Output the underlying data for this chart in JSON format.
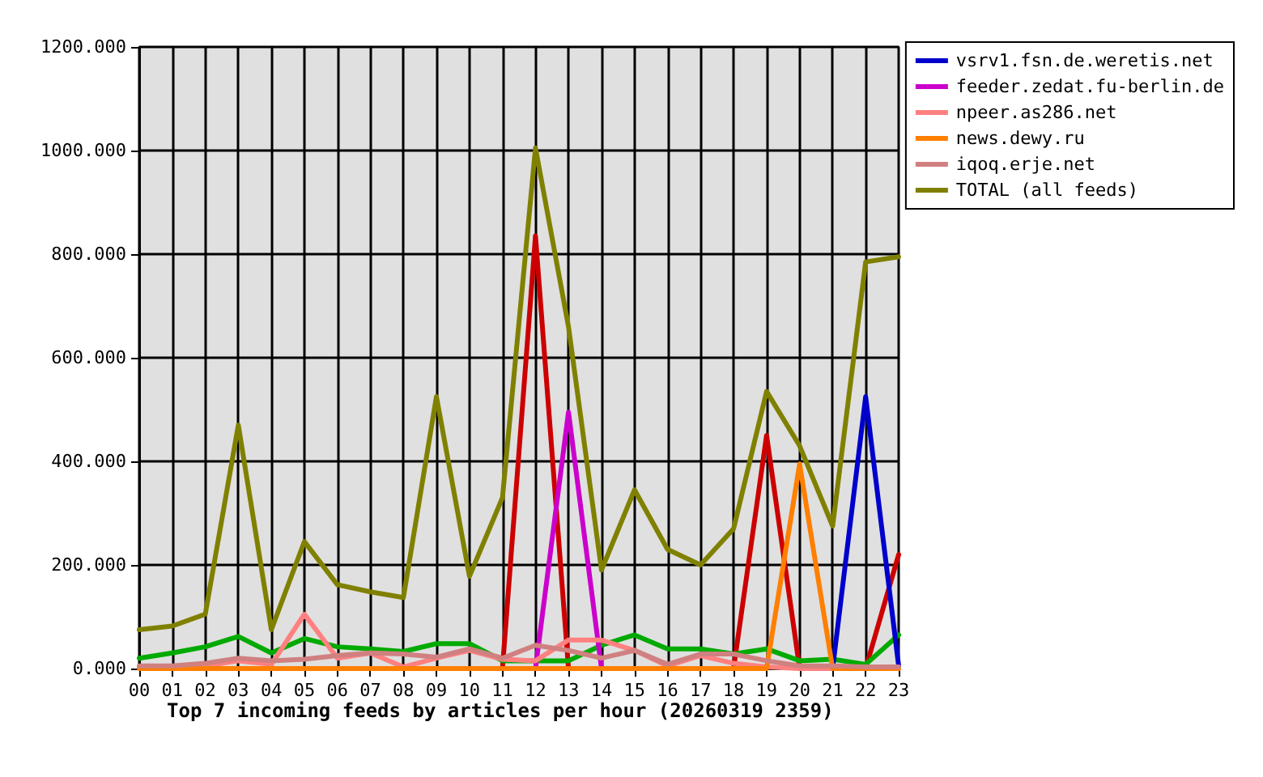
{
  "chart_data": {
    "type": "line",
    "title": "Top 7 incoming feeds by articles per hour (20260319 2359)",
    "categories": [
      "00",
      "01",
      "02",
      "03",
      "04",
      "05",
      "06",
      "07",
      "08",
      "09",
      "10",
      "11",
      "12",
      "13",
      "14",
      "15",
      "16",
      "17",
      "18",
      "19",
      "20",
      "21",
      "22",
      "23"
    ],
    "series": [
      {
        "color": "#cc0000",
        "values": [
          null,
          null,
          null,
          null,
          null,
          null,
          null,
          null,
          null,
          null,
          null,
          0,
          835,
          0,
          null,
          null,
          null,
          null,
          0,
          450,
          0,
          null,
          0,
          220
        ]
      },
      {
        "color": "#00aa00",
        "values": [
          20,
          30,
          42,
          62,
          30,
          58,
          42,
          38,
          33,
          48,
          48,
          15,
          15,
          15,
          45,
          65,
          38,
          38,
          28,
          38,
          15,
          18,
          8,
          65
        ]
      },
      {
        "name": "vsrv1.fsn.de.weretis.net",
        "color": "#0000cc",
        "values": [
          null,
          null,
          null,
          null,
          null,
          null,
          null,
          null,
          null,
          null,
          null,
          null,
          null,
          null,
          null,
          null,
          null,
          null,
          null,
          null,
          null,
          0,
          525,
          5
        ]
      },
      {
        "name": "feeder.zedat.fu-berlin.de",
        "color": "#cc00cc",
        "values": [
          null,
          null,
          null,
          null,
          null,
          null,
          null,
          null,
          null,
          null,
          null,
          null,
          0,
          495,
          0,
          null,
          null,
          null,
          null,
          null,
          null,
          null,
          null,
          null
        ]
      },
      {
        "name": "npeer.as286.net",
        "color": "#ff8080",
        "values": [
          3,
          3,
          5,
          15,
          8,
          105,
          20,
          30,
          3,
          20,
          35,
          18,
          15,
          55,
          55,
          35,
          5,
          25,
          10,
          3,
          0,
          0,
          0,
          0
        ]
      },
      {
        "name": "news.dewy.ru",
        "color": "#ff7f00",
        "values": [
          0,
          0,
          0,
          0,
          0,
          0,
          0,
          0,
          0,
          0,
          0,
          0,
          0,
          0,
          0,
          0,
          0,
          0,
          0,
          0,
          395,
          0,
          0,
          0
        ]
      },
      {
        "name": "iqoq.erje.net",
        "color": "#d08080",
        "values": [
          5,
          5,
          10,
          20,
          15,
          18,
          25,
          30,
          28,
          22,
          38,
          20,
          45,
          35,
          20,
          35,
          8,
          28,
          28,
          15,
          5,
          5,
          3,
          3
        ]
      },
      {
        "name": "TOTAL (all feeds)",
        "color": "#808000",
        "values": [
          75,
          82,
          105,
          470,
          75,
          245,
          162,
          148,
          137,
          525,
          178,
          330,
          1005,
          660,
          190,
          345,
          230,
          200,
          270,
          535,
          430,
          275,
          785,
          795
        ]
      }
    ],
    "ylim": [
      0,
      1200
    ],
    "yticks": [
      {
        "value": 0,
        "label": "0.000"
      },
      {
        "value": 200,
        "label": "200.000"
      },
      {
        "value": 400,
        "label": "400.000"
      },
      {
        "value": 600,
        "label": "600.000"
      },
      {
        "value": 800,
        "label": "800.000"
      },
      {
        "value": 1000,
        "label": "1000.000"
      },
      {
        "value": 1200,
        "label": "1200.000"
      }
    ],
    "grid": true,
    "legend": "top right",
    "marker": "none",
    "line_style": "solid"
  }
}
